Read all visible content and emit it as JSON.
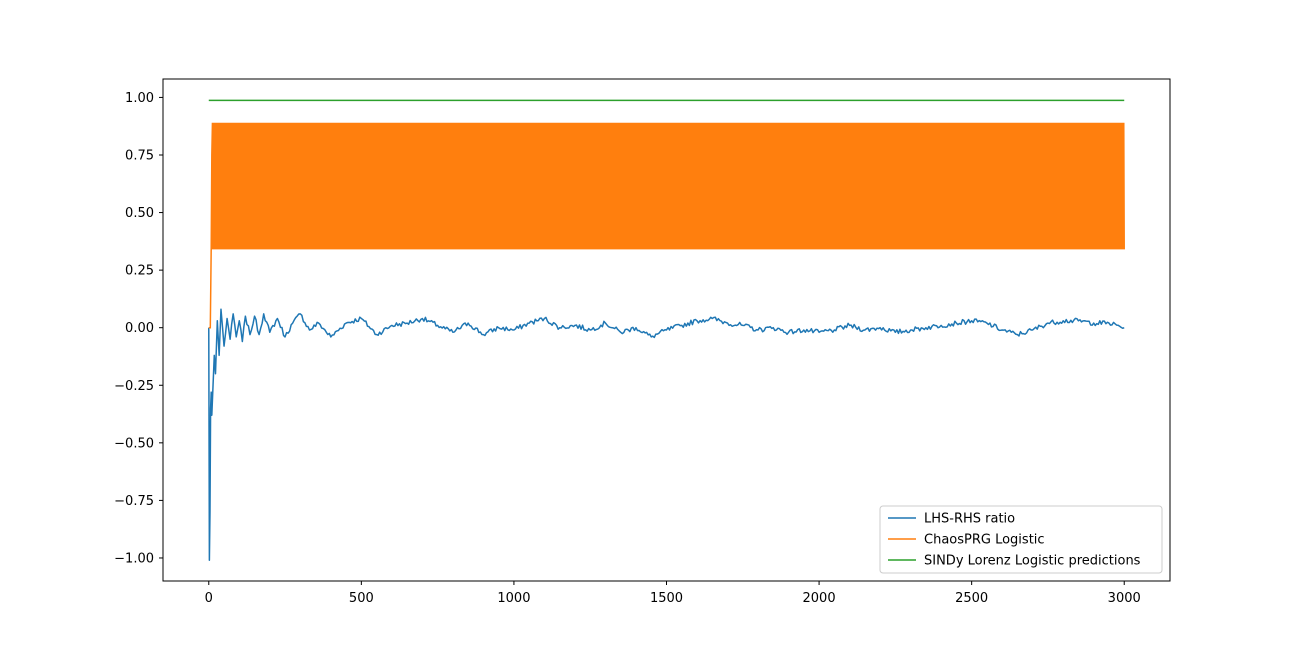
{
  "chart_data": {
    "type": "line",
    "title": "",
    "xlabel": "",
    "ylabel": "",
    "xlim": [
      -150,
      3150
    ],
    "ylim": [
      -1.1,
      1.08
    ],
    "x_ticks": [
      0,
      500,
      1000,
      1500,
      2000,
      2500,
      3000
    ],
    "y_ticks": [
      1.0,
      0.75,
      0.5,
      0.25,
      0.0,
      -0.25,
      -0.5,
      -0.75,
      -1.0
    ],
    "x_tick_labels": [
      "0",
      "500",
      "1000",
      "1500",
      "2000",
      "2500",
      "3000"
    ],
    "y_tick_labels": [
      "1.00",
      "0.75",
      "0.50",
      "0.25",
      "0.00",
      "−0.25",
      "−0.50",
      "−0.75",
      "−1.00"
    ],
    "grid": false,
    "legend_position": "lower-right",
    "series": [
      {
        "name": "LHS-RHS ratio",
        "color": "#1f77b4",
        "x": [
          0,
          2,
          4,
          6,
          8,
          10,
          14,
          18,
          22,
          28,
          34,
          40,
          50,
          60,
          70,
          80,
          90,
          100,
          110,
          120,
          135,
          150,
          165,
          180,
          200,
          225,
          250,
          275,
          300,
          330,
          360,
          400,
          450,
          500,
          550,
          600,
          650,
          700,
          750,
          800,
          850,
          900,
          950,
          1000,
          1050,
          1100,
          1150,
          1200,
          1250,
          1300,
          1350,
          1400,
          1450,
          1500,
          1550,
          1600,
          1650,
          1700,
          1750,
          1800,
          1850,
          1900,
          1950,
          2000,
          2050,
          2100,
          2150,
          2200,
          2250,
          2300,
          2350,
          2400,
          2450,
          2500,
          2550,
          2600,
          2650,
          2700,
          2750,
          2800,
          2850,
          2900,
          2950,
          3000
        ],
        "y": [
          0.0,
          -1.01,
          -0.8,
          -0.35,
          -0.28,
          -0.38,
          -0.25,
          -0.12,
          -0.2,
          0.03,
          -0.12,
          0.08,
          -0.08,
          0.04,
          -0.05,
          0.06,
          -0.04,
          0.03,
          -0.06,
          0.05,
          -0.03,
          0.05,
          -0.03,
          0.06,
          -0.02,
          0.04,
          -0.04,
          0.02,
          0.06,
          -0.01,
          0.02,
          -0.04,
          0.02,
          0.04,
          -0.03,
          0.01,
          0.02,
          0.04,
          0.01,
          -0.02,
          0.02,
          -0.03,
          0.0,
          -0.01,
          0.02,
          0.04,
          0.0,
          0.01,
          -0.01,
          0.02,
          -0.02,
          0.0,
          -0.04,
          -0.01,
          0.01,
          0.03,
          0.04,
          0.02,
          0.01,
          -0.01,
          0.0,
          -0.02,
          -0.01,
          -0.02,
          -0.01,
          0.01,
          -0.01,
          0.0,
          -0.02,
          -0.01,
          0.0,
          0.01,
          0.02,
          0.03,
          0.02,
          -0.01,
          -0.03,
          -0.01,
          0.02,
          0.03,
          0.03,
          0.02,
          0.02,
          0.0
        ]
      },
      {
        "name": "ChaosPRG Logistic",
        "color": "#ff7f0e",
        "x": [
          0,
          5,
          8,
          10,
          12,
          14,
          3000
        ],
        "y": [
          0.0,
          0.0,
          0.35,
          0.75,
          0.89,
          0.34,
          0.38
        ],
        "oscillation": {
          "x_start": 12,
          "x_end": 3000,
          "min": 0.34,
          "max": 0.89
        }
      },
      {
        "name": "SINDy Lorenz Logistic predictions",
        "color": "#2ca02c",
        "x": [
          0,
          3000
        ],
        "y": [
          0.987,
          0.987
        ]
      }
    ]
  }
}
